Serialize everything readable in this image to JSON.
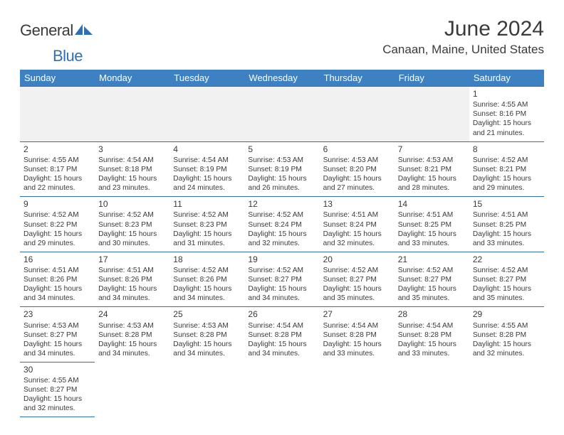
{
  "brand": {
    "name_part1": "General",
    "name_part2": "Blue",
    "accent_color": "#2f6fb3"
  },
  "title": "June 2024",
  "location": "Canaan, Maine, United States",
  "colors": {
    "header_bg": "#3d81c2",
    "header_text": "#ffffff",
    "border": "#2f6fb3",
    "text": "#3a3a3a",
    "blank_row_bg": "#f1f1f1",
    "page_bg": "#ffffff"
  },
  "layout": {
    "columns": 7,
    "rows": 6,
    "start_weekday_index": 6
  },
  "weekdays": [
    "Sunday",
    "Monday",
    "Tuesday",
    "Wednesday",
    "Thursday",
    "Friday",
    "Saturday"
  ],
  "days": [
    {
      "n": "1",
      "sunrise": "4:55 AM",
      "sunset": "8:16 PM",
      "daylight": "15 hours and 21 minutes."
    },
    {
      "n": "2",
      "sunrise": "4:55 AM",
      "sunset": "8:17 PM",
      "daylight": "15 hours and 22 minutes."
    },
    {
      "n": "3",
      "sunrise": "4:54 AM",
      "sunset": "8:18 PM",
      "daylight": "15 hours and 23 minutes."
    },
    {
      "n": "4",
      "sunrise": "4:54 AM",
      "sunset": "8:19 PM",
      "daylight": "15 hours and 24 minutes."
    },
    {
      "n": "5",
      "sunrise": "4:53 AM",
      "sunset": "8:19 PM",
      "daylight": "15 hours and 26 minutes."
    },
    {
      "n": "6",
      "sunrise": "4:53 AM",
      "sunset": "8:20 PM",
      "daylight": "15 hours and 27 minutes."
    },
    {
      "n": "7",
      "sunrise": "4:53 AM",
      "sunset": "8:21 PM",
      "daylight": "15 hours and 28 minutes."
    },
    {
      "n": "8",
      "sunrise": "4:52 AM",
      "sunset": "8:21 PM",
      "daylight": "15 hours and 29 minutes."
    },
    {
      "n": "9",
      "sunrise": "4:52 AM",
      "sunset": "8:22 PM",
      "daylight": "15 hours and 29 minutes."
    },
    {
      "n": "10",
      "sunrise": "4:52 AM",
      "sunset": "8:23 PM",
      "daylight": "15 hours and 30 minutes."
    },
    {
      "n": "11",
      "sunrise": "4:52 AM",
      "sunset": "8:23 PM",
      "daylight": "15 hours and 31 minutes."
    },
    {
      "n": "12",
      "sunrise": "4:52 AM",
      "sunset": "8:24 PM",
      "daylight": "15 hours and 32 minutes."
    },
    {
      "n": "13",
      "sunrise": "4:51 AM",
      "sunset": "8:24 PM",
      "daylight": "15 hours and 32 minutes."
    },
    {
      "n": "14",
      "sunrise": "4:51 AM",
      "sunset": "8:25 PM",
      "daylight": "15 hours and 33 minutes."
    },
    {
      "n": "15",
      "sunrise": "4:51 AM",
      "sunset": "8:25 PM",
      "daylight": "15 hours and 33 minutes."
    },
    {
      "n": "16",
      "sunrise": "4:51 AM",
      "sunset": "8:26 PM",
      "daylight": "15 hours and 34 minutes."
    },
    {
      "n": "17",
      "sunrise": "4:51 AM",
      "sunset": "8:26 PM",
      "daylight": "15 hours and 34 minutes."
    },
    {
      "n": "18",
      "sunrise": "4:52 AM",
      "sunset": "8:26 PM",
      "daylight": "15 hours and 34 minutes."
    },
    {
      "n": "19",
      "sunrise": "4:52 AM",
      "sunset": "8:27 PM",
      "daylight": "15 hours and 34 minutes."
    },
    {
      "n": "20",
      "sunrise": "4:52 AM",
      "sunset": "8:27 PM",
      "daylight": "15 hours and 35 minutes."
    },
    {
      "n": "21",
      "sunrise": "4:52 AM",
      "sunset": "8:27 PM",
      "daylight": "15 hours and 35 minutes."
    },
    {
      "n": "22",
      "sunrise": "4:52 AM",
      "sunset": "8:27 PM",
      "daylight": "15 hours and 35 minutes."
    },
    {
      "n": "23",
      "sunrise": "4:53 AM",
      "sunset": "8:27 PM",
      "daylight": "15 hours and 34 minutes."
    },
    {
      "n": "24",
      "sunrise": "4:53 AM",
      "sunset": "8:28 PM",
      "daylight": "15 hours and 34 minutes."
    },
    {
      "n": "25",
      "sunrise": "4:53 AM",
      "sunset": "8:28 PM",
      "daylight": "15 hours and 34 minutes."
    },
    {
      "n": "26",
      "sunrise": "4:54 AM",
      "sunset": "8:28 PM",
      "daylight": "15 hours and 34 minutes."
    },
    {
      "n": "27",
      "sunrise": "4:54 AM",
      "sunset": "8:28 PM",
      "daylight": "15 hours and 33 minutes."
    },
    {
      "n": "28",
      "sunrise": "4:54 AM",
      "sunset": "8:28 PM",
      "daylight": "15 hours and 33 minutes."
    },
    {
      "n": "29",
      "sunrise": "4:55 AM",
      "sunset": "8:28 PM",
      "daylight": "15 hours and 32 minutes."
    },
    {
      "n": "30",
      "sunrise": "4:55 AM",
      "sunset": "8:27 PM",
      "daylight": "15 hours and 32 minutes."
    }
  ],
  "labels": {
    "sunrise": "Sunrise: ",
    "sunset": "Sunset: ",
    "daylight": "Daylight: "
  }
}
